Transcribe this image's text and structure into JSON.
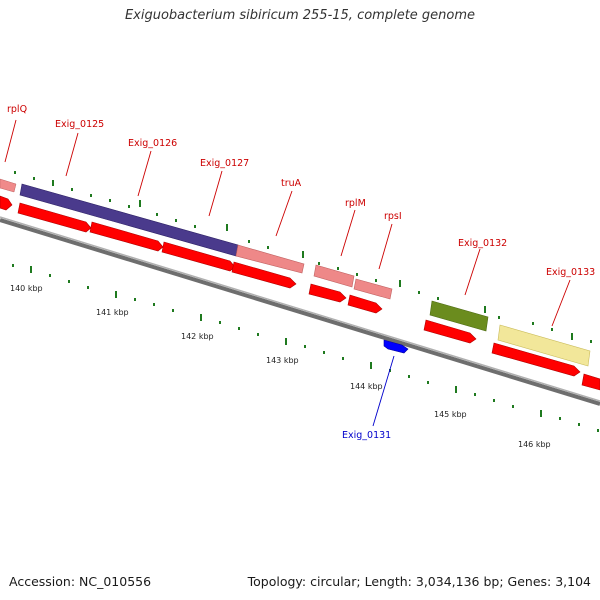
{
  "title": "Exiguobacterium sibiricum 255-15, complete genome",
  "accession": "Accession: NC_010556",
  "summary": "Topology: circular; Length: 3,034,136 bp; Genes: 3,104",
  "colors": {
    "backbone": "#7a7a7a",
    "tick": "#1f7a1f",
    "gene_forward": "#ff0000",
    "gene_reverse": "#0000ff",
    "label_forward": "#cc0000",
    "label_reverse": "#0000cc"
  },
  "kbp_labels": [
    "140 kbp",
    "141 kbp",
    "142 kbp",
    "143 kbp",
    "144 kbp",
    "145 kbp",
    "146 kbp"
  ],
  "feature_labels": [
    "rplQ",
    "Exig_0125",
    "Exig_0126",
    "Exig_0127",
    "truA",
    "rplM",
    "rpsI",
    "Exig_0132",
    "Exig_0133",
    "Exig_0131"
  ]
}
